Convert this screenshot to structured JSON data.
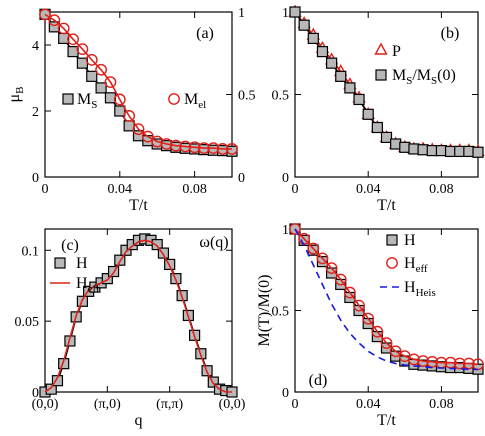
{
  "colors": {
    "red": "#e0201a",
    "black": "#000000",
    "gray": "#b8b8b8",
    "blue": "#1a1adf"
  },
  "chart_data": [
    {
      "panel": "a",
      "panel_label": "(a)",
      "type": "line",
      "xlabel": "T/t",
      "ylabel": "μ",
      "ylabel_sub": "B",
      "xlim": [
        0,
        0.1
      ],
      "ylim": [
        0,
        5
      ],
      "y2lim": [
        0,
        1
      ],
      "xticks": [
        0,
        0.04,
        0.08
      ],
      "xtick_labels": [
        "0",
        "0.04",
        "0.08"
      ],
      "yticks": [
        0,
        2,
        4
      ],
      "ytick_labels": [
        "0",
        "2",
        "4"
      ],
      "y2ticks": [
        0,
        0.5,
        1
      ],
      "y2tick_labels": [
        "0",
        "0.5",
        "1"
      ],
      "series": [
        {
          "name": "M",
          "name_sub": "S",
          "marker": "square",
          "axis": "left",
          "x": [
            0,
            0.005,
            0.01,
            0.015,
            0.02,
            0.025,
            0.03,
            0.035,
            0.04,
            0.045,
            0.05,
            0.055,
            0.06,
            0.065,
            0.07,
            0.075,
            0.08,
            0.085,
            0.09,
            0.095,
            0.1
          ],
          "y": [
            4.93,
            4.55,
            4.2,
            3.8,
            3.45,
            3.05,
            2.7,
            2.4,
            2.0,
            1.55,
            1.25,
            1.1,
            1.0,
            0.95,
            0.9,
            0.87,
            0.85,
            0.83,
            0.81,
            0.8,
            0.78
          ]
        },
        {
          "name": "M",
          "name_sub": "el",
          "marker": "circle",
          "axis": "right",
          "x": [
            0,
            0.005,
            0.01,
            0.015,
            0.02,
            0.025,
            0.03,
            0.035,
            0.04,
            0.045,
            0.05,
            0.055,
            0.06,
            0.065,
            0.07,
            0.075,
            0.08,
            0.085,
            0.09,
            0.095,
            0.1
          ],
          "y": [
            0.985,
            0.95,
            0.9,
            0.835,
            0.775,
            0.71,
            0.65,
            0.575,
            0.47,
            0.37,
            0.29,
            0.245,
            0.215,
            0.2,
            0.19,
            0.185,
            0.18,
            0.175,
            0.175,
            0.17,
            0.17
          ]
        }
      ]
    },
    {
      "panel": "b",
      "panel_label": "(b)",
      "type": "line",
      "xlabel": "T/t",
      "xlim": [
        0,
        0.1
      ],
      "ylim": [
        0,
        1
      ],
      "xticks": [
        0,
        0.04,
        0.08
      ],
      "xtick_labels": [
        "0",
        "0.04",
        "0.08"
      ],
      "yticks": [
        0,
        0.5,
        1
      ],
      "ytick_labels": [
        "0",
        "0.5",
        "1"
      ],
      "series": [
        {
          "name": "P",
          "marker": "triangle",
          "x": [
            0,
            0.005,
            0.01,
            0.015,
            0.02,
            0.025,
            0.03,
            0.035,
            0.04,
            0.045,
            0.05,
            0.055,
            0.06,
            0.065,
            0.07,
            0.075,
            0.08,
            0.085,
            0.09,
            0.095,
            0.1
          ],
          "y": [
            1.0,
            0.93,
            0.86,
            0.78,
            0.71,
            0.64,
            0.56,
            0.48,
            0.38,
            0.3,
            0.24,
            0.2,
            0.18,
            0.17,
            0.17,
            0.165,
            0.16,
            0.16,
            0.16,
            0.16,
            0.155
          ]
        },
        {
          "name": "M",
          "name_sub": "S",
          "name_suffix": "/M",
          "name_suffix_sub": "S",
          "name_tail": "(0)",
          "marker": "square",
          "x": [
            0,
            0.005,
            0.01,
            0.015,
            0.02,
            0.025,
            0.03,
            0.035,
            0.04,
            0.045,
            0.05,
            0.055,
            0.06,
            0.065,
            0.07,
            0.075,
            0.08,
            0.085,
            0.09,
            0.095,
            0.1
          ],
          "y": [
            1.0,
            0.92,
            0.84,
            0.76,
            0.69,
            0.61,
            0.54,
            0.47,
            0.38,
            0.3,
            0.24,
            0.2,
            0.18,
            0.17,
            0.165,
            0.16,
            0.16,
            0.155,
            0.155,
            0.155,
            0.15
          ]
        }
      ]
    },
    {
      "panel": "c",
      "panel_label": "(c)",
      "type": "line",
      "title": "ω(q)",
      "xlabel": "q",
      "xlim": [
        0,
        3
      ],
      "ylim": [
        0,
        0.115
      ],
      "xticks": [
        0,
        1,
        2,
        3
      ],
      "xtick_labels": [
        "(0,0)",
        "(π,0)",
        "(π,π)",
        "(0,0)"
      ],
      "yticks": [
        0,
        0.05,
        0.1
      ],
      "ytick_labels": [
        "0",
        "0.05",
        "0.1"
      ],
      "series": [
        {
          "name": "H",
          "marker": "square",
          "x": [
            0.0,
            0.1,
            0.2,
            0.3,
            0.4,
            0.5,
            0.6,
            0.7,
            0.8,
            0.9,
            1.0,
            1.1,
            1.2,
            1.3,
            1.4,
            1.5,
            1.6,
            1.7,
            1.8,
            1.9,
            2.0,
            2.1,
            2.2,
            2.3,
            2.4,
            2.5,
            2.6,
            2.7,
            2.8,
            2.9,
            3.0
          ],
          "y": [
            0.0,
            0.002,
            0.008,
            0.02,
            0.036,
            0.053,
            0.064,
            0.071,
            0.074,
            0.077,
            0.08,
            0.085,
            0.093,
            0.1,
            0.104,
            0.107,
            0.108,
            0.107,
            0.104,
            0.098,
            0.09,
            0.08,
            0.068,
            0.054,
            0.04,
            0.027,
            0.015,
            0.007,
            0.002,
            0.001,
            0.0
          ]
        },
        {
          "name": "H",
          "name_sub": "eff",
          "marker": "line",
          "x": [
            0.0,
            0.1,
            0.2,
            0.3,
            0.4,
            0.5,
            0.6,
            0.7,
            0.8,
            0.9,
            1.0,
            1.1,
            1.2,
            1.3,
            1.4,
            1.5,
            1.6,
            1.7,
            1.8,
            1.9,
            2.0,
            2.1,
            2.2,
            2.3,
            2.4,
            2.5,
            2.6,
            2.7,
            2.8,
            2.9,
            3.0
          ],
          "y": [
            0.0,
            0.003,
            0.01,
            0.022,
            0.038,
            0.054,
            0.065,
            0.072,
            0.075,
            0.077,
            0.079,
            0.084,
            0.092,
            0.099,
            0.103,
            0.106,
            0.107,
            0.106,
            0.103,
            0.097,
            0.089,
            0.079,
            0.067,
            0.053,
            0.039,
            0.026,
            0.014,
            0.006,
            0.002,
            0.0,
            0.0
          ]
        }
      ]
    },
    {
      "panel": "d",
      "panel_label": "(d)",
      "type": "line",
      "xlabel": "T/t",
      "ylabel": "M(T)/M(0)",
      "xlim": [
        0,
        0.1
      ],
      "ylim": [
        0,
        1
      ],
      "xticks": [
        0,
        0.04,
        0.08
      ],
      "xtick_labels": [
        "0",
        "0.04",
        "0.08"
      ],
      "yticks": [
        0,
        0.5,
        1
      ],
      "ytick_labels": [
        "0",
        "0.5",
        "1"
      ],
      "series": [
        {
          "name": "H",
          "marker": "square",
          "x": [
            0,
            0.005,
            0.01,
            0.015,
            0.02,
            0.025,
            0.03,
            0.035,
            0.04,
            0.045,
            0.05,
            0.055,
            0.06,
            0.065,
            0.07,
            0.075,
            0.08,
            0.085,
            0.09,
            0.095,
            0.1
          ],
          "y": [
            1.0,
            0.93,
            0.87,
            0.8,
            0.73,
            0.66,
            0.58,
            0.5,
            0.42,
            0.34,
            0.27,
            0.22,
            0.19,
            0.17,
            0.165,
            0.16,
            0.155,
            0.15,
            0.15,
            0.145,
            0.14
          ]
        },
        {
          "name": "H",
          "name_sub": "eff",
          "marker": "circle",
          "x": [
            0,
            0.005,
            0.01,
            0.015,
            0.02,
            0.025,
            0.03,
            0.035,
            0.04,
            0.045,
            0.05,
            0.055,
            0.06,
            0.065,
            0.07,
            0.075,
            0.08,
            0.085,
            0.09,
            0.095,
            0.1
          ],
          "y": [
            1.0,
            0.94,
            0.88,
            0.82,
            0.76,
            0.69,
            0.61,
            0.53,
            0.45,
            0.37,
            0.3,
            0.25,
            0.22,
            0.2,
            0.19,
            0.185,
            0.18,
            0.18,
            0.175,
            0.175,
            0.17
          ]
        },
        {
          "name": "H",
          "name_sub": "Heis",
          "marker": "dashed",
          "x": [
            0,
            0.005,
            0.01,
            0.015,
            0.02,
            0.025,
            0.03,
            0.035,
            0.04,
            0.045,
            0.05,
            0.055,
            0.06,
            0.065,
            0.07,
            0.075,
            0.08,
            0.085,
            0.09,
            0.095,
            0.1
          ],
          "y": [
            1.0,
            0.9,
            0.78,
            0.66,
            0.54,
            0.44,
            0.36,
            0.3,
            0.25,
            0.215,
            0.19,
            0.175,
            0.165,
            0.16,
            0.155,
            0.15,
            0.147,
            0.145,
            0.142,
            0.14,
            0.138
          ]
        }
      ]
    }
  ]
}
